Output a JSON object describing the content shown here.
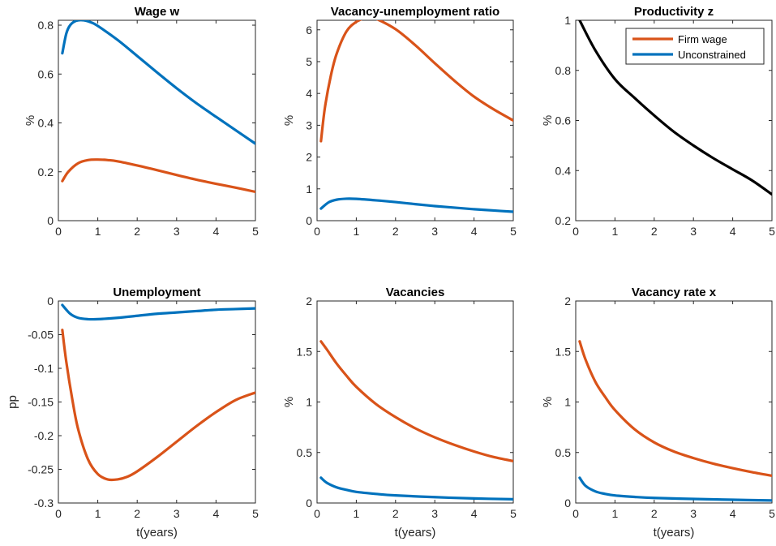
{
  "figure": {
    "legend": {
      "placement": "top-right",
      "panel": 2,
      "entries": [
        {
          "name": "Firm wage",
          "color": "#D95319"
        },
        {
          "name": "Unconstrained",
          "color": "#0072BD"
        }
      ]
    }
  },
  "chart_data": [
    {
      "type": "line",
      "title": "Wage w",
      "xlabel": "",
      "ylabel": "%",
      "xlim": [
        0,
        5
      ],
      "ylim": [
        0,
        0.82
      ],
      "xticks": [
        0,
        1,
        2,
        3,
        4,
        5
      ],
      "xtick_labels": [
        "0",
        "1",
        "2",
        "3",
        "4",
        "5"
      ],
      "yticks": [
        0,
        0.2,
        0.4,
        0.6,
        0.8
      ],
      "ytick_labels": [
        "0",
        "0.2",
        "0.4",
        "0.6",
        "0.8"
      ],
      "series": [
        {
          "name": "Firm wage",
          "color": "#D95319",
          "x": [
            0.1,
            0.25,
            0.5,
            0.75,
            1.0,
            1.25,
            1.5,
            2.0,
            2.5,
            3.0,
            3.5,
            4.0,
            4.5,
            5.0
          ],
          "y": [
            0.162,
            0.2,
            0.235,
            0.248,
            0.25,
            0.248,
            0.243,
            0.226,
            0.207,
            0.187,
            0.168,
            0.151,
            0.135,
            0.118
          ]
        },
        {
          "name": "Unconstrained",
          "color": "#0072BD",
          "x": [
            0.1,
            0.2,
            0.3,
            0.45,
            0.65,
            0.85,
            1.0,
            1.5,
            2.0,
            2.5,
            3.0,
            3.5,
            4.0,
            4.5,
            5.0
          ],
          "y": [
            0.685,
            0.765,
            0.8,
            0.818,
            0.82,
            0.81,
            0.797,
            0.74,
            0.674,
            0.607,
            0.542,
            0.481,
            0.425,
            0.37,
            0.315
          ]
        }
      ]
    },
    {
      "type": "line",
      "title": "Vacancy-unemployment ratio",
      "xlabel": "",
      "ylabel": "%",
      "xlim": [
        0,
        5
      ],
      "ylim": [
        0,
        6.3
      ],
      "xticks": [
        0,
        1,
        2,
        3,
        4,
        5
      ],
      "xtick_labels": [
        "0",
        "1",
        "2",
        "3",
        "4",
        "5"
      ],
      "yticks": [
        0,
        1,
        2,
        3,
        4,
        5,
        6
      ],
      "ytick_labels": [
        "0",
        "1",
        "2",
        "3",
        "4",
        "5",
        "6"
      ],
      "series": [
        {
          "name": "Firm wage",
          "color": "#D95319",
          "x": [
            0.1,
            0.2,
            0.35,
            0.5,
            0.75,
            1.0,
            1.25,
            1.35,
            1.5,
            2.0,
            2.5,
            3.0,
            3.5,
            4.0,
            4.5,
            5.0
          ],
          "y": [
            2.5,
            3.55,
            4.55,
            5.25,
            5.95,
            6.25,
            6.38,
            6.38,
            6.35,
            6.02,
            5.52,
            4.95,
            4.4,
            3.9,
            3.5,
            3.15
          ]
        },
        {
          "name": "Unconstrained",
          "color": "#0072BD",
          "x": [
            0.1,
            0.3,
            0.5,
            0.75,
            1.0,
            1.5,
            2.0,
            2.5,
            3.0,
            3.5,
            4.0,
            4.5,
            5.0
          ],
          "y": [
            0.38,
            0.58,
            0.66,
            0.69,
            0.685,
            0.64,
            0.585,
            0.52,
            0.46,
            0.41,
            0.36,
            0.32,
            0.28
          ]
        }
      ]
    },
    {
      "type": "line",
      "title": "Productivity z",
      "xlabel": "",
      "ylabel": "%",
      "xlim": [
        0,
        5
      ],
      "ylim": [
        0.2,
        1
      ],
      "xticks": [
        0,
        1,
        2,
        3,
        4,
        5
      ],
      "xtick_labels": [
        "0",
        "1",
        "2",
        "3",
        "4",
        "5"
      ],
      "yticks": [
        0.2,
        0.4,
        0.6,
        0.8,
        1
      ],
      "ytick_labels": [
        "0.2",
        "0.4",
        "0.6",
        "0.8",
        "1"
      ],
      "series": [
        {
          "name": "z",
          "color": "#000000",
          "x": [
            0.1,
            0.5,
            1.0,
            1.5,
            2.0,
            2.5,
            3.0,
            3.5,
            4.0,
            4.5,
            5.0
          ],
          "y": [
            1.0,
            0.88,
            0.765,
            0.69,
            0.62,
            0.555,
            0.5,
            0.45,
            0.405,
            0.36,
            0.305
          ]
        }
      ]
    },
    {
      "type": "line",
      "title": "Unemployment",
      "xlabel": "t(years)",
      "ylabel": "pp",
      "xlim": [
        0,
        5
      ],
      "ylim": [
        -0.3,
        0
      ],
      "xticks": [
        0,
        1,
        2,
        3,
        4,
        5
      ],
      "xtick_labels": [
        "0",
        "1",
        "2",
        "3",
        "4",
        "5"
      ],
      "yticks": [
        -0.3,
        -0.25,
        -0.2,
        -0.15,
        -0.1,
        -0.05,
        0
      ],
      "ytick_labels": [
        "-0.3",
        "-0.25",
        "-0.2",
        "-0.15",
        "-0.1",
        "-0.05",
        "0"
      ],
      "series": [
        {
          "name": "Firm wage",
          "color": "#D95319",
          "x": [
            0.1,
            0.2,
            0.35,
            0.5,
            0.75,
            1.0,
            1.25,
            1.5,
            1.75,
            2.0,
            2.5,
            3.0,
            3.5,
            4.0,
            4.5,
            5.0
          ],
          "y": [
            -0.043,
            -0.09,
            -0.145,
            -0.19,
            -0.235,
            -0.257,
            -0.265,
            -0.265,
            -0.261,
            -0.253,
            -0.232,
            -0.209,
            -0.186,
            -0.165,
            -0.147,
            -0.136
          ]
        },
        {
          "name": "Unconstrained",
          "color": "#0072BD",
          "x": [
            0.1,
            0.3,
            0.5,
            0.75,
            1.0,
            1.5,
            2.0,
            2.5,
            3.0,
            3.5,
            4.0,
            4.5,
            5.0
          ],
          "y": [
            -0.006,
            -0.019,
            -0.025,
            -0.027,
            -0.027,
            -0.025,
            -0.022,
            -0.019,
            -0.017,
            -0.015,
            -0.013,
            -0.012,
            -0.011
          ]
        }
      ]
    },
    {
      "type": "line",
      "title": "Vacancies",
      "xlabel": "t(years)",
      "ylabel": "%",
      "xlim": [
        0,
        5
      ],
      "ylim": [
        0,
        2
      ],
      "xticks": [
        0,
        1,
        2,
        3,
        4,
        5
      ],
      "xtick_labels": [
        "0",
        "1",
        "2",
        "3",
        "4",
        "5"
      ],
      "yticks": [
        0,
        0.5,
        1,
        1.5,
        2
      ],
      "ytick_labels": [
        "0",
        "0.5",
        "1",
        "1.5",
        "2"
      ],
      "series": [
        {
          "name": "Firm wage",
          "color": "#D95319",
          "x": [
            0.1,
            0.25,
            0.5,
            0.75,
            1.0,
            1.5,
            2.0,
            2.5,
            3.0,
            3.5,
            4.0,
            4.5,
            5.0
          ],
          "y": [
            1.6,
            1.52,
            1.38,
            1.26,
            1.15,
            0.98,
            0.85,
            0.74,
            0.65,
            0.575,
            0.51,
            0.455,
            0.415
          ]
        },
        {
          "name": "Unconstrained",
          "color": "#0072BD",
          "x": [
            0.1,
            0.25,
            0.5,
            0.75,
            1.0,
            1.5,
            2.0,
            3.0,
            4.0,
            5.0
          ],
          "y": [
            0.25,
            0.2,
            0.155,
            0.13,
            0.11,
            0.09,
            0.075,
            0.058,
            0.045,
            0.037
          ]
        }
      ]
    },
    {
      "type": "line",
      "title": "Vacancy rate x",
      "xlabel": "t(years)",
      "ylabel": "%",
      "xlim": [
        0,
        5
      ],
      "ylim": [
        0,
        2
      ],
      "xticks": [
        0,
        1,
        2,
        3,
        4,
        5
      ],
      "xtick_labels": [
        "0",
        "1",
        "2",
        "3",
        "4",
        "5"
      ],
      "yticks": [
        0,
        0.5,
        1,
        1.5,
        2
      ],
      "ytick_labels": [
        "0",
        "0.5",
        "1",
        "1.5",
        "2"
      ],
      "series": [
        {
          "name": "Firm wage",
          "color": "#D95319",
          "x": [
            0.1,
            0.25,
            0.5,
            0.75,
            1.0,
            1.5,
            2.0,
            2.5,
            3.0,
            3.5,
            4.0,
            4.5,
            5.0
          ],
          "y": [
            1.6,
            1.42,
            1.2,
            1.05,
            0.92,
            0.73,
            0.6,
            0.51,
            0.445,
            0.39,
            0.345,
            0.305,
            0.27
          ]
        },
        {
          "name": "Unconstrained",
          "color": "#0072BD",
          "x": [
            0.1,
            0.25,
            0.5,
            0.75,
            1.0,
            1.5,
            2.0,
            3.0,
            4.0,
            5.0
          ],
          "y": [
            0.25,
            0.17,
            0.115,
            0.09,
            0.075,
            0.06,
            0.05,
            0.04,
            0.032,
            0.025
          ]
        }
      ]
    }
  ]
}
